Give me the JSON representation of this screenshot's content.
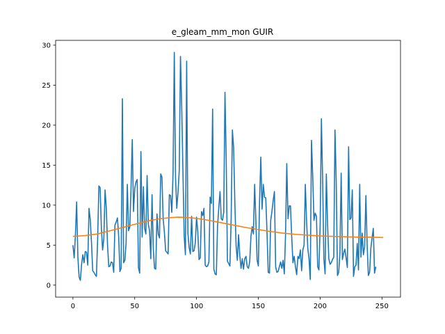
{
  "chart_data": {
    "type": "line",
    "title": "e_gleam_mm_mon GUIR",
    "xlabel": "",
    "ylabel": "",
    "xlim": [
      -14,
      265
    ],
    "ylim": [
      -1.5,
      30.6
    ],
    "xticks": [
      0,
      50,
      100,
      150,
      200,
      250
    ],
    "yticks": [
      0,
      5,
      10,
      15,
      20,
      25,
      30
    ],
    "grid": false,
    "series": [
      {
        "color": "#1f77b4",
        "x_start": 0,
        "values": [
          5.0,
          3.4,
          6.2,
          10.4,
          3.5,
          1.0,
          0.6,
          2.6,
          3.8,
          2.8,
          4.2,
          4.1,
          2.5,
          9.6,
          8.2,
          5.4,
          1.8,
          1.6,
          1.3,
          1.1,
          5.8,
          12.4,
          12.2,
          7.2,
          4.4,
          5.8,
          11.9,
          9.6,
          5.0,
          2.3,
          2.4,
          2.9,
          2.8,
          1.6,
          7.5,
          7.9,
          8.4,
          6.1,
          1.7,
          2.1,
          23.3,
          2.8,
          3.1,
          5.2,
          12.6,
          6.8,
          7.3,
          12.1,
          18.2,
          9.2,
          12.1,
          12.9,
          13.2,
          2.2,
          1.5,
          16.7,
          6.0,
          12.3,
          7.1,
          6.4,
          13.7,
          7.6,
          6.8,
          3.3,
          11.3,
          4.6,
          2.1,
          2.0,
          8.9,
          6.4,
          5.9,
          13.9,
          13.5,
          8.3,
          6.6,
          4.3,
          4.1,
          3.9,
          11.3,
          11.2,
          9.1,
          14.0,
          29.1,
          13.5,
          9.6,
          11.6,
          14.3,
          28.6,
          22.3,
          14.2,
          6.1,
          3.8,
          28.0,
          6.5,
          4.7,
          3.9,
          8.6,
          4.2,
          4.3,
          5.3,
          8.5,
          6.7,
          3.2,
          3.4,
          9.2,
          8.7,
          9.6,
          2.5,
          2.3,
          2.4,
          2.9,
          11.0,
          10.2,
          22.0,
          2.0,
          1.4,
          1.3,
          7.4,
          9.7,
          11.7,
          8.3,
          8.1,
          9.1,
          24.1,
          15.7,
          3.0,
          2.7,
          2.4,
          8.3,
          19.4,
          17.2,
          10.2,
          4.9,
          3.1,
          6.3,
          3.7,
          2.1,
          3.3,
          2.0,
          3.3,
          3.6,
          2.3,
          2.1,
          2.9,
          6.1,
          7.3,
          6.4,
          12.6,
          8.0,
          3.1,
          2.4,
          10.6,
          16.0,
          9.5,
          12.6,
          11.0,
          10.9,
          6.6,
          1.6,
          1.5,
          8.1,
          9.2,
          10.6,
          11.7,
          2.3,
          1.6,
          1.7,
          2.3,
          2.9,
          2.1,
          3.1,
          1.4,
          6.3,
          15.2,
          8.3,
          9.9,
          9.9,
          6.0,
          2.8,
          3.6,
          2.3,
          1.3,
          3.6,
          3.3,
          4.4,
          1.8,
          4.4,
          5.0,
          12.6,
          8.1,
          4.6,
          3.3,
          0.7,
          18.1,
          13.5,
          8.1,
          9.0,
          8.6,
          2.3,
          1.9,
          7.5,
          20.8,
          13.2,
          3.3,
          1.4,
          13.9,
          7.7,
          3.3,
          2.6,
          2.8,
          3.2,
          3.5,
          19.4,
          13.0,
          1.2,
          1.6,
          4.0,
          14.0,
          3.2,
          4.0,
          4.5,
          3.4,
          2.2,
          17.3,
          8.2,
          8.4,
          11.9,
          1.1,
          2.3,
          2.5,
          5.2,
          1.9,
          12.6,
          3.5,
          6.5,
          3.8,
          4.8,
          11.2,
          5.1,
          1.2,
          1.6,
          4.6,
          5.9,
          7.1,
          1.5,
          2.3
        ]
      },
      {
        "color": "#ff7f0e",
        "x": [
          0,
          10,
          20,
          30,
          40,
          50,
          60,
          70,
          80,
          85,
          90,
          100,
          110,
          120,
          130,
          140,
          150,
          160,
          170,
          180,
          190,
          200,
          210,
          220,
          230,
          240,
          251
        ],
        "values": [
          6.1,
          6.2,
          6.4,
          6.8,
          7.2,
          7.6,
          8.0,
          8.3,
          8.45,
          8.5,
          8.48,
          8.35,
          8.1,
          7.8,
          7.5,
          7.2,
          6.95,
          6.7,
          6.5,
          6.35,
          6.25,
          6.15,
          6.1,
          6.05,
          6.0,
          6.0,
          5.95
        ]
      }
    ]
  }
}
